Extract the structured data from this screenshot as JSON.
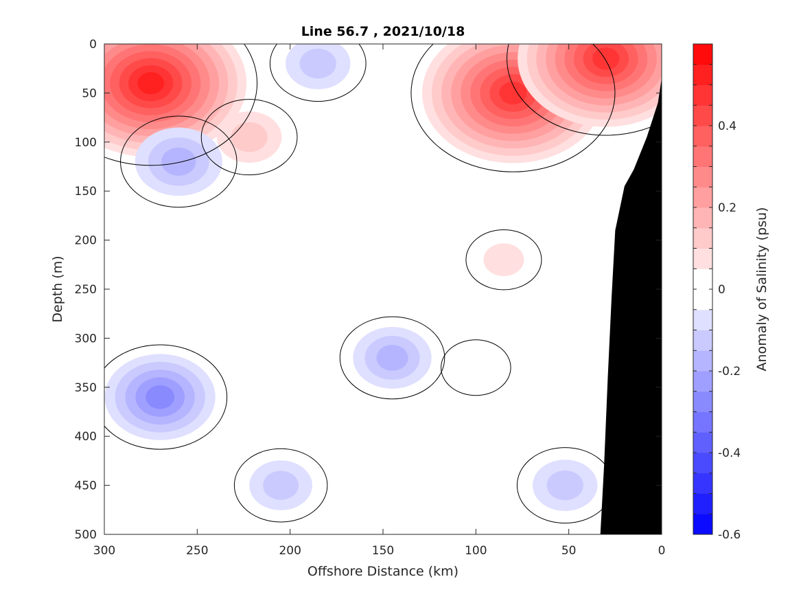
{
  "chart_data": {
    "type": "heatmap",
    "subtype": "filled-contour section",
    "title": "Line 56.7 , 2021/10/18",
    "xlabel": "Offshore Distance (km)",
    "ylabel": "Depth (m)",
    "colorbar_label": "Anomaly of Salinity (psu)",
    "xlim": [
      0,
      300
    ],
    "x_reversed": true,
    "ylim": [
      0,
      500
    ],
    "y_reversed": true,
    "x_ticks": [
      300,
      250,
      200,
      150,
      100,
      50,
      0
    ],
    "y_ticks": [
      0,
      50,
      100,
      150,
      200,
      250,
      300,
      350,
      400,
      450,
      500
    ],
    "colorbar_range": [
      -0.6,
      0.6
    ],
    "colorbar_ticks": [
      -0.6,
      -0.4,
      -0.2,
      0,
      0.2,
      0.4
    ],
    "colorbar_levels": 24,
    "colormap": {
      "negative": "#0000ff",
      "zero": "#ffffff",
      "positive": "#ff0000"
    },
    "zero_contour_color": "#000000",
    "bathymetry_color": "#000000",
    "features": [
      {
        "sign": "positive",
        "peak": 0.55,
        "distance_km": 275,
        "depth_m": 40
      },
      {
        "sign": "positive",
        "peak": 0.52,
        "distance_km": 80,
        "depth_m": 50
      },
      {
        "sign": "positive",
        "peak": 0.5,
        "distance_km": 30,
        "depth_m": 15
      },
      {
        "sign": "positive",
        "peak": 0.15,
        "distance_km": 222,
        "depth_m": 95
      },
      {
        "sign": "positive",
        "peak": 0.08,
        "distance_km": 85,
        "depth_m": 220
      },
      {
        "sign": "positive",
        "peak": 0.06,
        "distance_km": 100,
        "depth_m": 330
      },
      {
        "sign": "negative",
        "peak": -0.22,
        "distance_km": 260,
        "depth_m": 120
      },
      {
        "sign": "negative",
        "peak": -0.15,
        "distance_km": 185,
        "depth_m": 20
      },
      {
        "sign": "negative",
        "peak": -0.28,
        "distance_km": 270,
        "depth_m": 360
      },
      {
        "sign": "negative",
        "peak": -0.14,
        "distance_km": 205,
        "depth_m": 450
      },
      {
        "sign": "negative",
        "peak": -0.18,
        "distance_km": 145,
        "depth_m": 320
      },
      {
        "sign": "negative",
        "peak": -0.15,
        "distance_km": 52,
        "depth_m": 450
      }
    ],
    "bathymetry": [
      {
        "distance_km": 0,
        "depth_m": 35
      },
      {
        "distance_km": 2,
        "depth_m": 60
      },
      {
        "distance_km": 8,
        "depth_m": 95
      },
      {
        "distance_km": 15,
        "depth_m": 128
      },
      {
        "distance_km": 20,
        "depth_m": 145
      },
      {
        "distance_km": 25,
        "depth_m": 190
      },
      {
        "distance_km": 27,
        "depth_m": 260
      },
      {
        "distance_km": 29,
        "depth_m": 340
      },
      {
        "distance_km": 31,
        "depth_m": 430
      },
      {
        "distance_km": 33,
        "depth_m": 500
      }
    ]
  }
}
